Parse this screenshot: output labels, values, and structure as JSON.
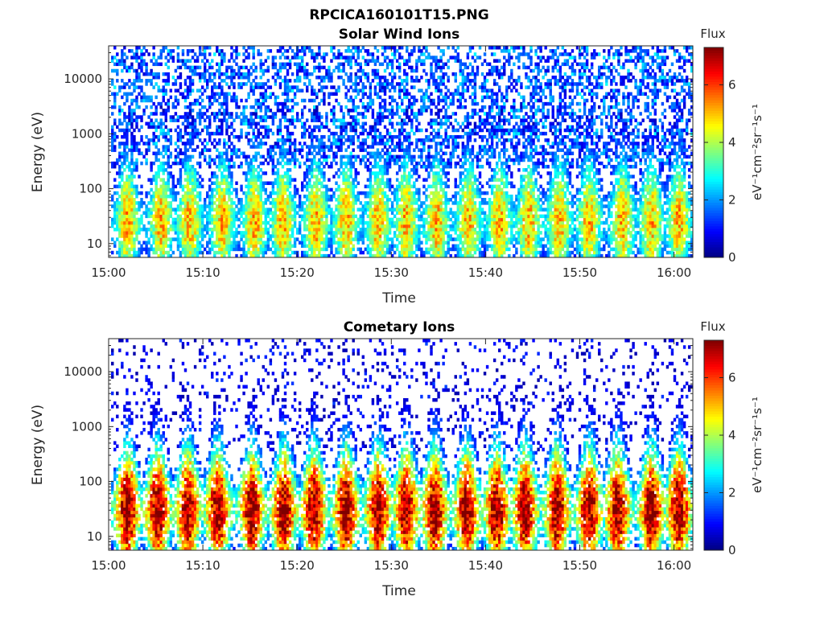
{
  "figure": {
    "title": "RPCICA160101T15.PNG"
  },
  "colors": {
    "colormap": [
      "#00007f",
      "#0000ff",
      "#007fff",
      "#00ffff",
      "#7fff7f",
      "#ffff00",
      "#ff7f00",
      "#ff0000",
      "#7f0000"
    ]
  },
  "chart_data": [
    {
      "type": "heatmap",
      "title": "Solar Wind Ions",
      "xlabel": "Time",
      "ylabel": "Energy (eV)",
      "x_range": [
        "15:00",
        "16:02"
      ],
      "x_ticks": [
        "15:00",
        "15:10",
        "15:20",
        "15:30",
        "15:40",
        "15:50",
        "16:00"
      ],
      "y_scale": "log",
      "y_range": [
        5.6,
        40000
      ],
      "y_ticks": [
        "10",
        "100",
        "1000",
        "10000"
      ],
      "colorbar": {
        "title": "Flux",
        "label": "eV⁻¹cm⁻²sr⁻¹s⁻¹",
        "range": [
          0,
          7.3
        ],
        "ticks": [
          "0",
          "2",
          "4",
          "6"
        ]
      },
      "pulse_minutes": [
        2.0,
        5.6,
        8.6,
        12.1,
        15.5,
        18.5,
        22.0,
        25.2,
        28.6,
        31.6,
        34.8,
        38.2,
        41.5,
        44.6,
        47.8,
        51.0,
        54.5,
        57.6,
        60.5
      ],
      "features": {
        "low_energy_peak_eV": 25,
        "low_energy_peak_flux": 4.6,
        "high_energy_background_flux": 2.0,
        "high_energy_background_band_eV": [
          1000,
          30000
        ]
      }
    },
    {
      "type": "heatmap",
      "title": "Cometary Ions",
      "xlabel": "Time",
      "ylabel": "Energy (eV)",
      "x_range": [
        "15:00",
        "16:02"
      ],
      "x_ticks": [
        "15:00",
        "15:10",
        "15:20",
        "15:30",
        "15:40",
        "15:50",
        "16:00"
      ],
      "y_scale": "log",
      "y_range": [
        5.6,
        40000
      ],
      "y_ticks": [
        "10",
        "100",
        "1000",
        "10000"
      ],
      "colorbar": {
        "title": "Flux",
        "label": "eV⁻¹cm⁻²sr⁻¹s⁻¹",
        "range": [
          0,
          7.3
        ],
        "ticks": [
          "0",
          "2",
          "4",
          "6"
        ]
      },
      "pulse_minutes": [
        2.0,
        5.2,
        8.4,
        11.6,
        15.2,
        18.6,
        21.8,
        25.2,
        28.6,
        31.6,
        34.6,
        38.0,
        41.2,
        44.2,
        47.6,
        51.0,
        54.0,
        57.6,
        60.5
      ],
      "features": {
        "low_energy_peak_eV": 30,
        "low_energy_peak_flux": 6.6,
        "high_energy_background_flux": 1.0,
        "high_energy_background_band_eV": [
          1500,
          20000
        ]
      }
    }
  ]
}
